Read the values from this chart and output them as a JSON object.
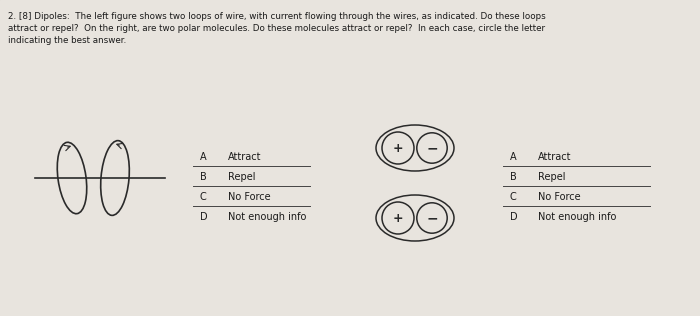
{
  "bg_color": "#c8c0b8",
  "paper_color": "#e8e4de",
  "title_text": "2. [8] Dipoles:  The left figure shows two loops of wire, with current flowing through the wires, as indicated. Do these loops\nattract or repel?  On the right, are two polar molecules. Do these molecules attract or repel?  In each case, circle the letter\nindicating the best answer.",
  "left_choices": [
    [
      "A",
      "Attract"
    ],
    [
      "B",
      "Repel"
    ],
    [
      "C",
      "No Force"
    ],
    [
      "D",
      "Not enough info"
    ]
  ],
  "right_choices": [
    [
      "A",
      "Attract"
    ],
    [
      "B",
      "Repel"
    ],
    [
      "C",
      "No Force"
    ],
    [
      "D",
      "Not enough info"
    ]
  ]
}
